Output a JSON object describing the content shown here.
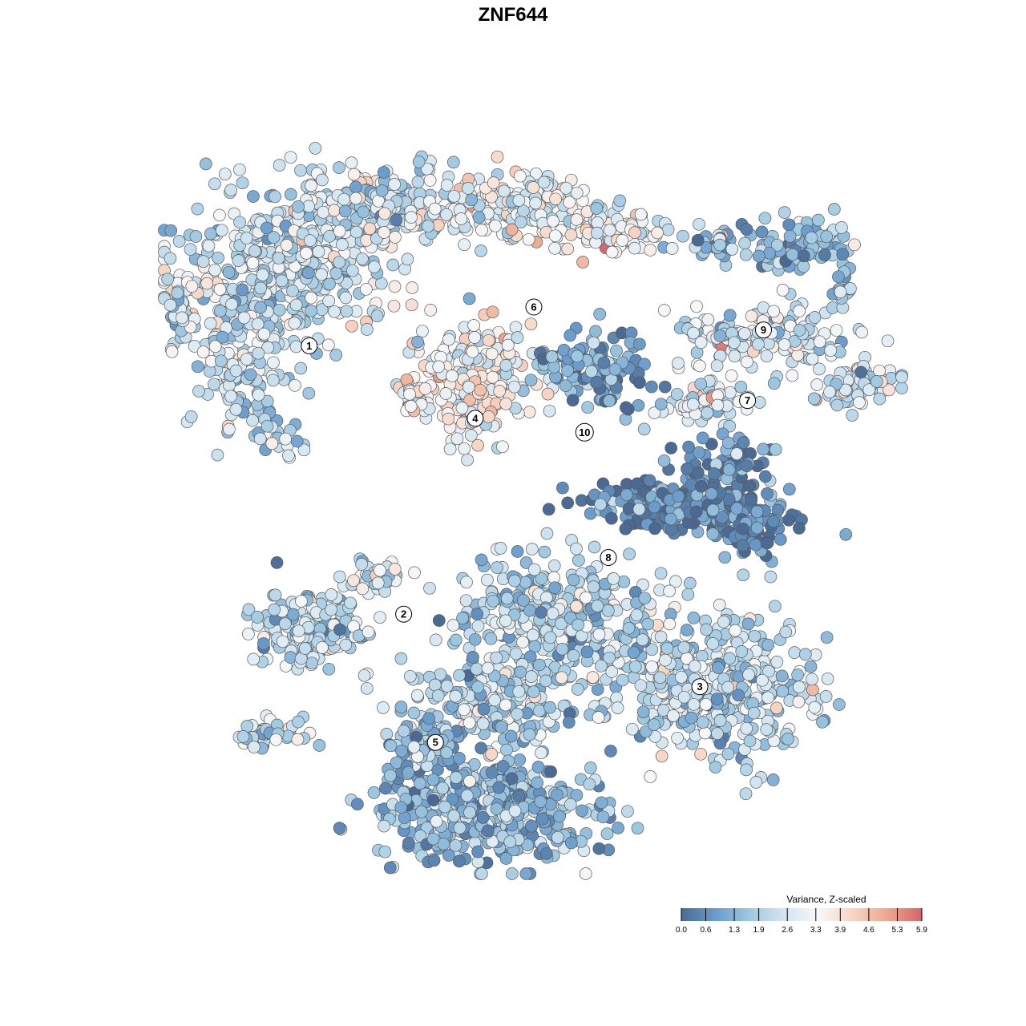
{
  "chart_data": {
    "type": "scatter",
    "title": "ZNF644",
    "xlabel": "",
    "ylabel": "",
    "grid": false,
    "axes_visible": false,
    "colorbar": {
      "title": "Variance, Z-scaled",
      "position": "bottom-right",
      "orientation": "horizontal",
      "range": [
        0.0,
        5.9
      ],
      "ticks": [
        "0.0",
        "0.6",
        "1.3",
        "1.9",
        "2.6",
        "3.3",
        "3.9",
        "4.6",
        "5.3",
        "5.9"
      ],
      "colors": [
        "#4a6a93",
        "#6a9ccc",
        "#9ec8e1",
        "#d3e6f1",
        "#f7f7f7",
        "#f7d4c2",
        "#eda78e",
        "#d66467"
      ]
    },
    "clusters": [
      {
        "label": "1",
        "x": -20.5,
        "y": 16.5,
        "value": 2.4
      },
      {
        "label": "2",
        "x": -11.0,
        "y": -10.5,
        "value": 2.2
      },
      {
        "label": "3",
        "x": 18.8,
        "y": -17.8,
        "value": 2.1
      },
      {
        "label": "4",
        "x": -3.8,
        "y": 9.2,
        "value": 3.3
      },
      {
        "label": "5",
        "x": -7.8,
        "y": -23.4,
        "value": 1.4
      },
      {
        "label": "6",
        "x": 2.1,
        "y": 20.4,
        "value": 3.0
      },
      {
        "label": "7",
        "x": 23.6,
        "y": 11.0,
        "value": 2.5
      },
      {
        "label": "8",
        "x": 9.6,
        "y": -4.8,
        "value": 0.5
      },
      {
        "label": "9",
        "x": 25.2,
        "y": 18.1,
        "value": 1.6
      },
      {
        "label": "10",
        "x": 7.2,
        "y": 7.8,
        "value": 0.9
      }
    ]
  }
}
